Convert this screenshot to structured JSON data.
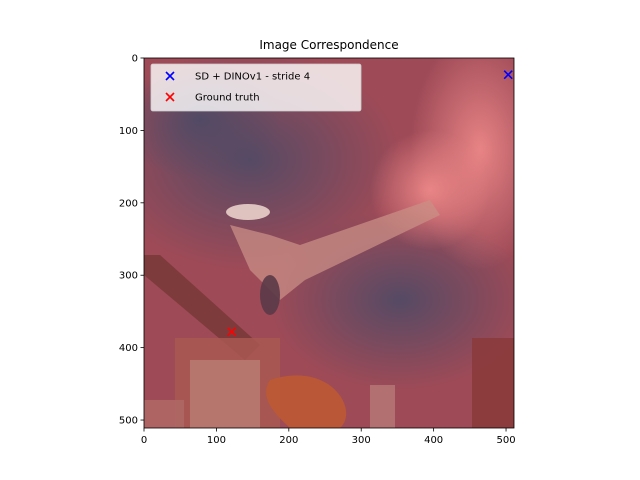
{
  "chart_data": {
    "type": "scatter",
    "title": "Image Correspondence",
    "xlim": [
      0,
      511
    ],
    "ylim": [
      511,
      0
    ],
    "y_inverted": true,
    "xticks": [
      0,
      100,
      200,
      300,
      400,
      500
    ],
    "yticks": [
      0,
      100,
      200,
      300,
      400,
      500
    ],
    "grid": false,
    "legend_position": "upper-left",
    "series": [
      {
        "name": "SD + DINOv1 - stride 4",
        "marker": "x",
        "color": "#0000ff",
        "points": [
          [
            503,
            23
          ]
        ]
      },
      {
        "name": "Ground truth",
        "marker": "x",
        "color": "#ff0000",
        "points": [
          [
            121,
            378
          ]
        ]
      }
    ],
    "background": "heatmap-overlaid photograph (reddish tint)"
  }
}
